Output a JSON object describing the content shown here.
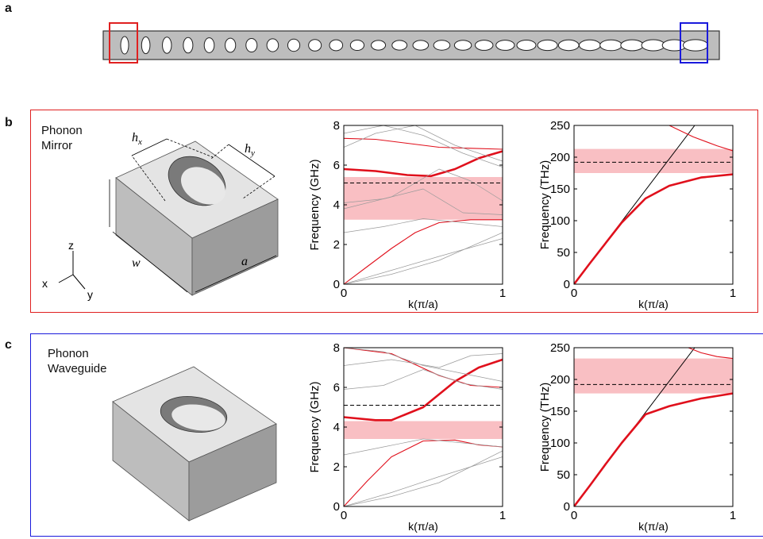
{
  "colors": {
    "mirror_accent": "#e02020",
    "waveguide_accent": "#1a1adc",
    "band_fill": "#f8b4b8",
    "band_line": "#e0101c",
    "light_line": "#000000",
    "grey_band": "#9a9a9a",
    "beam_fill": "#bdbdbd"
  },
  "panel_a": {
    "letter": "a",
    "hole_count": 28
  },
  "panel_b": {
    "letter": "b",
    "label_line1": "Phonon",
    "label_line2": "Mirror",
    "dims": {
      "hx": "h",
      "hx_sub": "x",
      "hy": "h",
      "hy_sub": "y",
      "w": "w",
      "a": "a"
    },
    "axes": {
      "z": "z",
      "x": "x",
      "y": "y"
    }
  },
  "panel_c": {
    "letter": "c",
    "label_line1": "Phonon",
    "label_line2": "Waveguide"
  },
  "chart_data": [
    {
      "id": "b_mech",
      "type": "line",
      "xlabel": "k(π/a)",
      "ylabel": "Frequency (GHz)",
      "xlim": [
        0,
        1
      ],
      "ylim": [
        0,
        8
      ],
      "xticks": [
        "0",
        "1"
      ],
      "yticks": [
        "0",
        "2",
        "4",
        "6",
        "8"
      ],
      "ytick_values": [
        0,
        2,
        4,
        6,
        8
      ],
      "bandgap": [
        3.25,
        5.4
      ],
      "dashed_y": 5.1,
      "series": [
        {
          "style": "red-thick",
          "x": [
            0,
            0.2,
            0.4,
            0.55,
            0.7,
            0.85,
            1
          ],
          "y": [
            5.8,
            5.7,
            5.5,
            5.45,
            5.8,
            6.35,
            6.7
          ]
        },
        {
          "style": "red",
          "x": [
            0,
            0.2,
            0.4,
            0.6,
            0.8,
            1
          ],
          "y": [
            7.35,
            7.3,
            7.1,
            6.9,
            6.85,
            6.8
          ]
        },
        {
          "style": "red",
          "x": [
            0,
            0.15,
            0.3,
            0.45,
            0.6,
            0.8,
            1
          ],
          "y": [
            0,
            0.9,
            1.8,
            2.6,
            3.1,
            3.25,
            3.25
          ]
        },
        {
          "style": "grey",
          "x": [
            0,
            0.3,
            0.6,
            1
          ],
          "y": [
            0,
            0.7,
            1.4,
            2.3
          ]
        },
        {
          "style": "grey",
          "x": [
            0,
            0.3,
            0.6,
            1
          ],
          "y": [
            0,
            0.5,
            1.2,
            2.6
          ]
        },
        {
          "style": "grey",
          "x": [
            0,
            0.25,
            0.5,
            0.75,
            1
          ],
          "y": [
            2.6,
            2.9,
            3.3,
            3.1,
            2.9
          ]
        },
        {
          "style": "grey",
          "x": [
            0,
            0.25,
            0.5,
            0.75,
            1
          ],
          "y": [
            4.1,
            4.3,
            4.8,
            3.6,
            3.5
          ]
        },
        {
          "style": "grey",
          "x": [
            0,
            0.3,
            0.6,
            0.8,
            1
          ],
          "y": [
            3.8,
            4.4,
            5.8,
            5.2,
            4.2
          ]
        },
        {
          "style": "grey",
          "x": [
            0,
            0.2,
            0.45,
            0.7,
            1
          ],
          "y": [
            6.9,
            7.6,
            8.0,
            7.0,
            6.2
          ]
        },
        {
          "style": "grey",
          "x": [
            0,
            0.25,
            0.5,
            0.75,
            1
          ],
          "y": [
            7.6,
            8.0,
            7.5,
            6.6,
            5.9
          ]
        }
      ]
    },
    {
      "id": "b_opt",
      "type": "line",
      "xlabel": "k(π/a)",
      "ylabel": "Frequency (THz)",
      "xlim": [
        0,
        1
      ],
      "ylim": [
        0,
        250
      ],
      "xticks": [
        "0",
        "1"
      ],
      "yticks": [
        "0",
        "50",
        "100",
        "150",
        "200",
        "250"
      ],
      "ytick_values": [
        0,
        50,
        100,
        150,
        200,
        250
      ],
      "bandgap": [
        175,
        213
      ],
      "dashed_y": 192,
      "series": [
        {
          "style": "black",
          "x": [
            0,
            0.76
          ],
          "y": [
            0,
            250
          ]
        },
        {
          "style": "red-thick",
          "x": [
            0,
            0.1,
            0.2,
            0.3,
            0.45,
            0.6,
            0.8,
            1
          ],
          "y": [
            0,
            33,
            65,
            97,
            135,
            155,
            168,
            173
          ]
        },
        {
          "style": "red",
          "x": [
            0.6,
            0.75,
            0.9,
            1
          ],
          "y": [
            250,
            232,
            218,
            210
          ]
        }
      ]
    },
    {
      "id": "c_mech",
      "type": "line",
      "xlabel": "k(π/a)",
      "ylabel": "Frequency (GHz)",
      "xlim": [
        0,
        1
      ],
      "ylim": [
        0,
        8
      ],
      "xticks": [
        "0",
        "1"
      ],
      "yticks": [
        "0",
        "2",
        "4",
        "6",
        "8"
      ],
      "ytick_values": [
        0,
        2,
        4,
        6,
        8
      ],
      "bandgap": [
        3.4,
        4.3
      ],
      "dashed_y": 5.1,
      "series": [
        {
          "style": "red-thick",
          "x": [
            0,
            0.2,
            0.3,
            0.5,
            0.7,
            0.85,
            1
          ],
          "y": [
            4.5,
            4.35,
            4.35,
            5.0,
            6.3,
            7.0,
            7.4
          ]
        },
        {
          "style": "red",
          "x": [
            0,
            0.3,
            0.6,
            0.8,
            1
          ],
          "y": [
            8.0,
            7.7,
            6.6,
            6.1,
            6.0
          ]
        },
        {
          "style": "red",
          "x": [
            0,
            0.15,
            0.3,
            0.5,
            0.7,
            0.85,
            1
          ],
          "y": [
            0,
            1.3,
            2.5,
            3.3,
            3.35,
            3.1,
            3.0
          ]
        },
        {
          "style": "grey",
          "x": [
            0,
            0.3,
            0.6,
            1
          ],
          "y": [
            0,
            0.7,
            1.5,
            2.5
          ]
        },
        {
          "style": "grey",
          "x": [
            0,
            0.3,
            0.6,
            1
          ],
          "y": [
            0,
            0.5,
            1.2,
            2.8
          ]
        },
        {
          "style": "grey",
          "x": [
            0,
            0.25,
            0.5,
            0.75,
            1
          ],
          "y": [
            2.6,
            3.0,
            3.4,
            3.2,
            3.0
          ]
        },
        {
          "style": "grey",
          "x": [
            0,
            0.25,
            0.5,
            0.75,
            1
          ],
          "y": [
            5.9,
            6.1,
            6.9,
            6.2,
            5.9
          ]
        },
        {
          "style": "grey",
          "x": [
            0,
            0.3,
            0.6,
            0.8,
            1
          ],
          "y": [
            7.1,
            7.4,
            7.0,
            7.6,
            7.7
          ]
        },
        {
          "style": "grey",
          "x": [
            0,
            0.25,
            0.5,
            0.75,
            1
          ],
          "y": [
            8.0,
            7.8,
            7.1,
            6.7,
            6.3
          ]
        }
      ]
    },
    {
      "id": "c_opt",
      "type": "line",
      "xlabel": "k(π/a)",
      "ylabel": "Frequency (THz)",
      "xlim": [
        0,
        1
      ],
      "ylim": [
        0,
        250
      ],
      "xticks": [
        "0",
        "1"
      ],
      "yticks": [
        "0",
        "50",
        "100",
        "150",
        "200",
        "250"
      ],
      "ytick_values": [
        0,
        50,
        100,
        150,
        200,
        250
      ],
      "bandgap": [
        178,
        233
      ],
      "dashed_y": 192,
      "series": [
        {
          "style": "black",
          "x": [
            0,
            0.76
          ],
          "y": [
            0,
            250
          ]
        },
        {
          "style": "red-thick",
          "x": [
            0,
            0.1,
            0.2,
            0.3,
            0.45,
            0.6,
            0.8,
            1
          ],
          "y": [
            0,
            33,
            67,
            100,
            145,
            158,
            170,
            178
          ]
        },
        {
          "style": "red",
          "x": [
            0.72,
            0.8,
            0.9,
            1
          ],
          "y": [
            250,
            242,
            236,
            233
          ]
        }
      ]
    }
  ]
}
